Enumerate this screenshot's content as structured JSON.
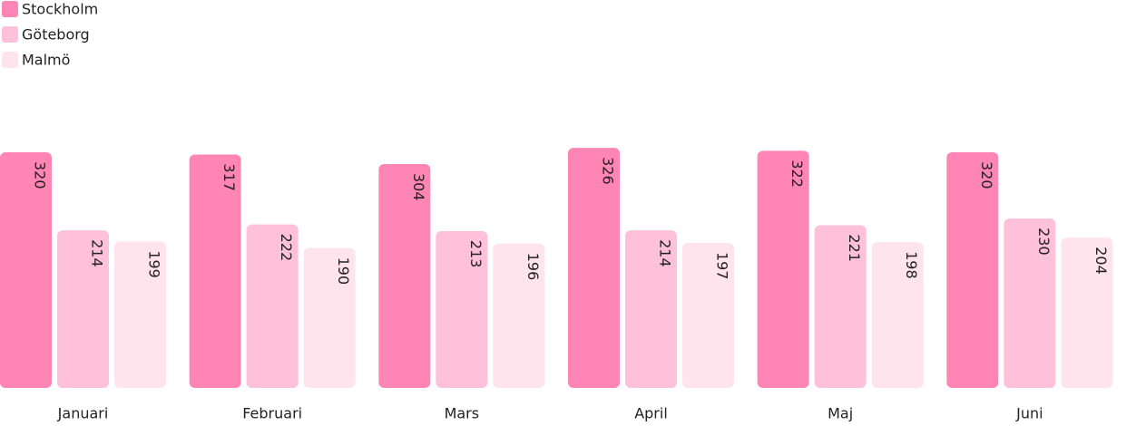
{
  "chart_data": {
    "type": "bar",
    "categories": [
      "Januari",
      "Februari",
      "Mars",
      "April",
      "Maj",
      "Juni"
    ],
    "series": [
      {
        "name": "Stockholm",
        "color": "#ff85b5",
        "values": [
          320,
          317,
          304,
          326,
          322,
          320
        ]
      },
      {
        "name": "Göteborg",
        "color": "#ffc0d9",
        "values": [
          214,
          222,
          213,
          214,
          221,
          230
        ]
      },
      {
        "name": "Malmö",
        "color": "#ffe4ee",
        "values": [
          199,
          190,
          196,
          197,
          198,
          204
        ]
      }
    ],
    "legend": "top-left"
  }
}
